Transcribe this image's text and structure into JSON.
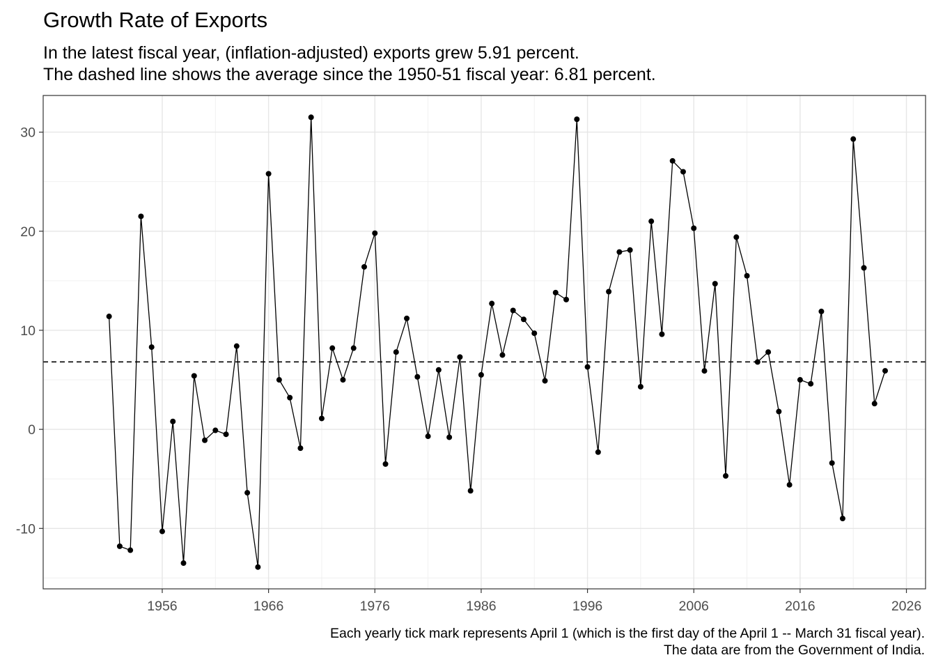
{
  "chart_data": {
    "type": "line",
    "title": "Growth Rate of Exports",
    "subtitle": [
      "In the latest fiscal year, (inflation-adjusted) exports grew 5.91 percent.",
      "The dashed line shows the average since the 1950-51 fiscal year: 6.81 percent."
    ],
    "caption": [
      "Each yearly tick mark represents April 1 (which is the first day of the April 1 -- March 31 fiscal year).",
      "The data are from the Government of India."
    ],
    "xlabel": "",
    "ylabel": "",
    "x_ticks": [
      "1956",
      "1966",
      "1976",
      "1986",
      "1996",
      "2006",
      "2016",
      "2026"
    ],
    "y_ticks": [
      "-10",
      "0",
      "10",
      "20",
      "30"
    ],
    "xlim": [
      1944.8,
      2027.8
    ],
    "ylim": [
      -16.1,
      33.7
    ],
    "average_line": 6.81,
    "average_line_style": "dashed",
    "grid": true,
    "series": [
      {
        "x": [
          1951,
          1952,
          1953,
          1954,
          1955,
          1956,
          1957,
          1958,
          1959,
          1960,
          1961,
          1962,
          1963,
          1964,
          1965,
          1966,
          1967,
          1968,
          1969,
          1970,
          1971,
          1972,
          1973,
          1974,
          1975,
          1976,
          1977,
          1978,
          1979,
          1980,
          1981,
          1982,
          1983,
          1984,
          1985,
          1986,
          1987,
          1988,
          1989,
          1990,
          1991,
          1992,
          1993,
          1994,
          1995,
          1996,
          1997,
          1998,
          1999,
          2000,
          2001,
          2002,
          2003,
          2004,
          2005,
          2006,
          2007,
          2008,
          2009,
          2010,
          2011,
          2012,
          2013,
          2014,
          2015,
          2016,
          2017,
          2018,
          2019,
          2020,
          2021,
          2022,
          2023,
          2024
        ],
        "values": [
          11.4,
          -11.8,
          -12.2,
          21.5,
          8.3,
          -10.3,
          0.8,
          -13.5,
          5.4,
          -1.1,
          -0.1,
          -0.5,
          8.4,
          -6.4,
          -13.9,
          25.8,
          5.0,
          3.2,
          -1.9,
          31.5,
          1.1,
          8.2,
          5.0,
          8.2,
          16.4,
          19.8,
          -3.5,
          7.8,
          11.2,
          5.3,
          -0.7,
          6.0,
          -0.8,
          7.3,
          -6.2,
          5.5,
          12.7,
          7.5,
          12.0,
          11.1,
          9.7,
          4.9,
          13.8,
          13.1,
          31.3,
          6.3,
          -2.3,
          13.9,
          17.9,
          18.1,
          4.3,
          21.0,
          9.6,
          27.1,
          26.0,
          20.3,
          5.9,
          14.7,
          -4.7,
          19.4,
          15.5,
          6.8,
          7.8,
          1.8,
          -5.6,
          5.0,
          4.6,
          11.9,
          -3.4,
          -9.0,
          29.3,
          16.3,
          2.6,
          5.91
        ]
      }
    ]
  }
}
